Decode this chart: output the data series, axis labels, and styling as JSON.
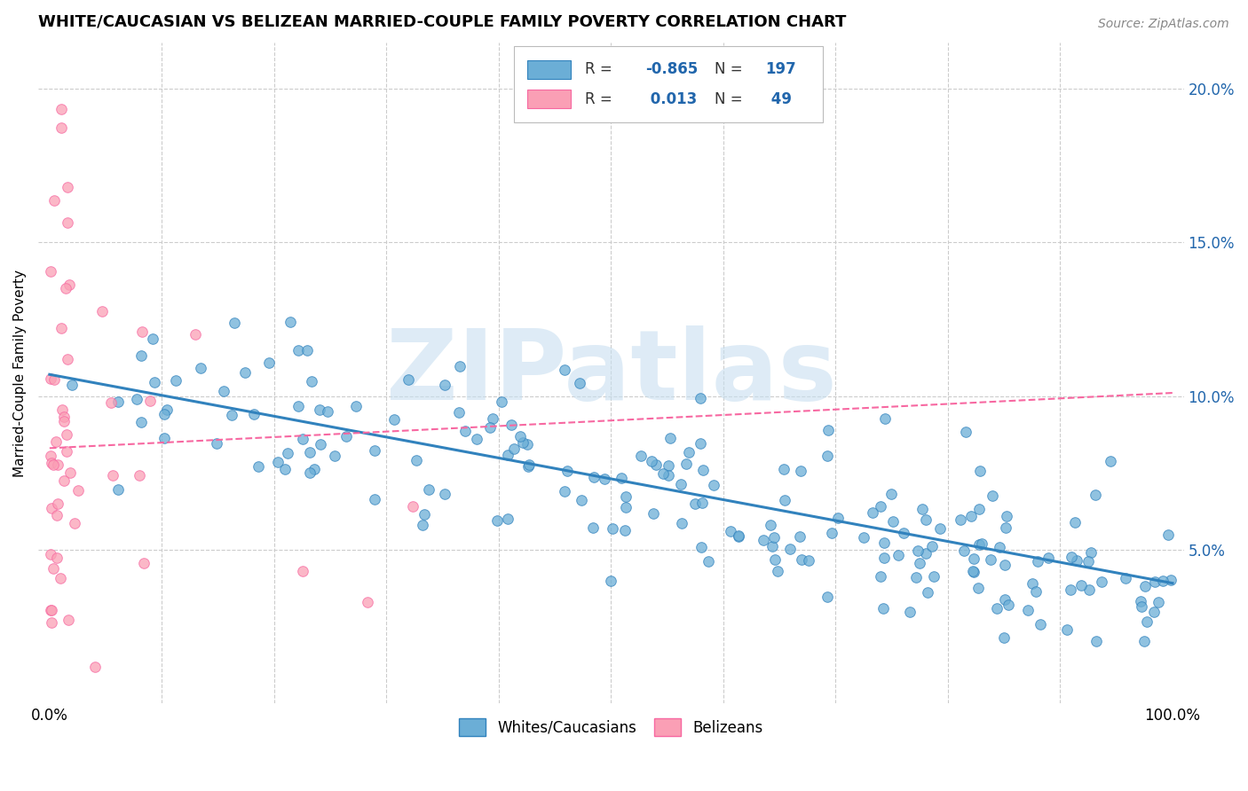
{
  "title": "WHITE/CAUCASIAN VS BELIZEAN MARRIED-COUPLE FAMILY POVERTY CORRELATION CHART",
  "source": "Source: ZipAtlas.com",
  "ylabel": "Married-Couple Family Poverty",
  "blue_color": "#6baed6",
  "blue_edge_color": "#3182bd",
  "blue_line_color": "#3182bd",
  "pink_color": "#fa9fb5",
  "pink_edge_color": "#f768a1",
  "pink_line_color": "#f768a1",
  "watermark_text": "ZIPatlas",
  "watermark_color": "#c8dff0",
  "legend_R_blue": "-0.865",
  "legend_N_blue": "197",
  "legend_R_pink": "0.013",
  "legend_N_pink": "49",
  "blue_intercept": 0.107,
  "blue_slope": -0.068,
  "pink_intercept": 0.083,
  "pink_slope": 0.018,
  "background_color": "#ffffff",
  "grid_color": "#cccccc",
  "label_color": "#2166ac",
  "title_fontsize": 13,
  "axis_label_fontsize": 11,
  "tick_fontsize": 12
}
